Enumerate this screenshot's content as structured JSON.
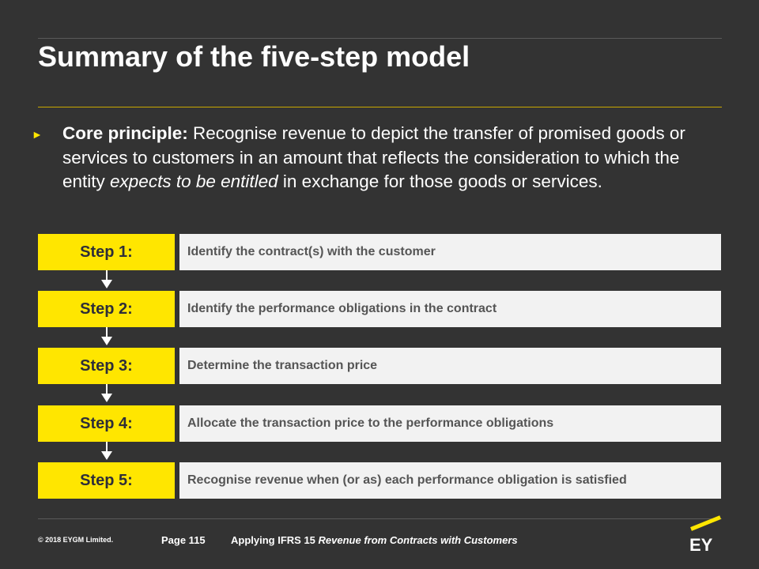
{
  "title": "Summary of the five-step model",
  "core_principle": {
    "lead": "Core principle:",
    "text_before": " Recognise revenue to depict the transfer of promised goods or services to customers in an amount that reflects the consideration to which the entity ",
    "emphasis": "expects to be entitled",
    "text_after": " in exchange for those goods or services."
  },
  "steps": [
    {
      "label": "Step 1:",
      "description": "Identify the contract(s) with the customer"
    },
    {
      "label": "Step 2:",
      "description": "Identify the performance obligations in the contract"
    },
    {
      "label": "Step 3:",
      "description": "Determine the transaction price"
    },
    {
      "label": "Step 4:",
      "description": "Allocate the transaction price to the performance obligations"
    },
    {
      "label": "Step 5:",
      "description": "Recognise revenue when (or as) each performance obligation is satisfied"
    }
  ],
  "footer": {
    "copyright": "© 2018 EYGM Limited.",
    "page": "Page 115",
    "doc_prefix": "Applying IFRS 15 ",
    "doc_italic": "Revenue from Contracts with Customers",
    "logo_text": "EY"
  },
  "colors": {
    "background": "#333333",
    "accent_yellow": "#ffe600",
    "step_box": "#f2f2f2"
  }
}
